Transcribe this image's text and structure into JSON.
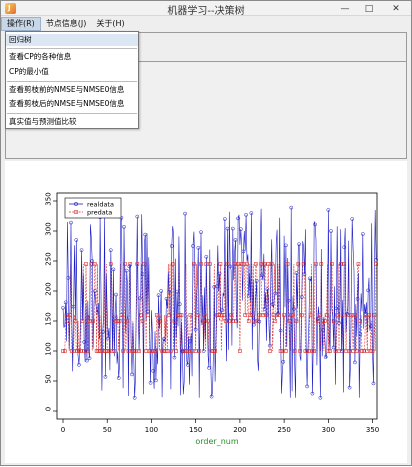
{
  "window": {
    "title": "机器学习--决策树",
    "controls": {
      "minimize": "—",
      "maximize": "□",
      "close": "✕"
    },
    "icon": "java-cup-icon"
  },
  "menubar": {
    "items": [
      {
        "label": "操作(R)",
        "active": true
      },
      {
        "label": "节点信息(J)",
        "active": false
      },
      {
        "label": "关于(H)",
        "active": false
      }
    ]
  },
  "dropdown": {
    "items": [
      "回归树",
      "查看CP的各种信息",
      "CP的最小值",
      "查看剪枝前的NMSE与NMSE0信息",
      "查看剪枝后的NMSE与NMSE0信息",
      "真实值与预测值比较"
    ]
  },
  "chart_data": {
    "type": "line",
    "xlabel": "order_num",
    "ylabel": "",
    "xlim": [
      0,
      355
    ],
    "ylim": [
      0,
      350
    ],
    "xticks": [
      0,
      50,
      100,
      150,
      200,
      250,
      300,
      350
    ],
    "yticks": [
      0,
      50,
      100,
      150,
      200,
      250,
      300,
      350
    ],
    "legend_position": "top-left",
    "series": [
      {
        "name": "realdata",
        "color": "#1d1dc8",
        "style": "solid",
        "marker": "circle"
      },
      {
        "name": "predata",
        "color": "#d93030",
        "style": "dashed",
        "marker": "square"
      }
    ],
    "predicted_levels": [
      100,
      150,
      160,
      245
    ]
  }
}
